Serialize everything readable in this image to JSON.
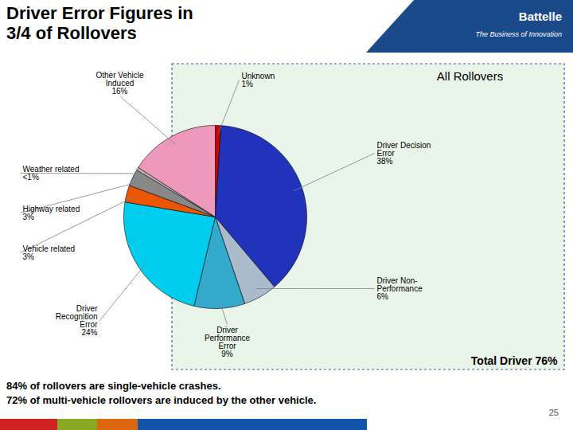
{
  "chart_data": {
    "type": "pie",
    "title": "Driver Error Figures in\n3/4 of Rollovers",
    "categories": [
      "Unknown\n1%",
      "Driver Decision\nError\n38%",
      "Driver Non-\nPerformance\n6%",
      "Driver\nPerformance\nError\n9%",
      "Driver\nRecognition\nError\n24%",
      "Vehicle related\n3%",
      "Highway related\n3%",
      "Weather related\n<1%",
      "Other Vehicle\nInduced\n16%"
    ],
    "values": [
      1,
      38,
      6,
      9,
      24,
      3,
      3,
      0.5,
      16
    ],
    "colors": [
      "#CC0000",
      "#2233BB",
      "#AABBCC",
      "#33AACC",
      "#00CCEE",
      "#EE5500",
      "#888888",
      "#BBBBBB",
      "#EE99BB"
    ],
    "annotations": [
      "All Rollovers",
      "Total Driver 76%",
      "84% of rollovers are single-vehicle crashes.",
      "72% of multi-vehicle rollovers are induced by the other vehicle.",
      "Battelle",
      "The Business of Innovation",
      "25"
    ]
  }
}
